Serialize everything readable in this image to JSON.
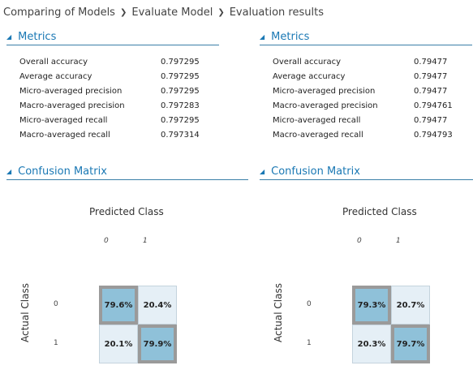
{
  "breadcrumb": {
    "items": [
      "Comparing of Models",
      "Evaluate Model",
      "Evaluation results"
    ]
  },
  "panels": [
    {
      "metrics_title": "Metrics",
      "metrics": [
        {
          "name": "Overall accuracy",
          "value": "0.797295"
        },
        {
          "name": "Average accuracy",
          "value": "0.797295"
        },
        {
          "name": "Micro-averaged precision",
          "value": "0.797295"
        },
        {
          "name": "Macro-averaged precision",
          "value": "0.797283"
        },
        {
          "name": "Micro-averaged recall",
          "value": "0.797295"
        },
        {
          "name": "Macro-averaged recall",
          "value": "0.797314"
        }
      ],
      "confusion_title": "Confusion Matrix",
      "predicted_label": "Predicted Class",
      "actual_label": "Actual Class",
      "col_labels": [
        "0",
        "1"
      ],
      "row_labels": [
        "0",
        "1"
      ],
      "cells": [
        [
          "79.6%",
          "20.4%"
        ],
        [
          "20.1%",
          "79.9%"
        ]
      ]
    },
    {
      "metrics_title": "Metrics",
      "metrics": [
        {
          "name": "Overall accuracy",
          "value": "0.79477"
        },
        {
          "name": "Average accuracy",
          "value": "0.79477"
        },
        {
          "name": "Micro-averaged precision",
          "value": "0.79477"
        },
        {
          "name": "Macro-averaged precision",
          "value": "0.794761"
        },
        {
          "name": "Micro-averaged recall",
          "value": "0.79477"
        },
        {
          "name": "Macro-averaged recall",
          "value": "0.794793"
        }
      ],
      "confusion_title": "Confusion Matrix",
      "predicted_label": "Predicted Class",
      "actual_label": "Actual Class",
      "col_labels": [
        "0",
        "1"
      ],
      "row_labels": [
        "0",
        "1"
      ],
      "cells": [
        [
          "79.3%",
          "20.7%"
        ],
        [
          "20.3%",
          "79.7%"
        ]
      ]
    }
  ],
  "icons": {
    "breadcrumb_separator": "chevron-right-icon",
    "section_toggle": "collapse-triangle-icon"
  },
  "colors": {
    "section_header": "#1a78b4",
    "diagonal_cell": "#8fc1d9",
    "off_diagonal_cell": "#e5eff6",
    "diagonal_border": "#9a9a9a"
  }
}
